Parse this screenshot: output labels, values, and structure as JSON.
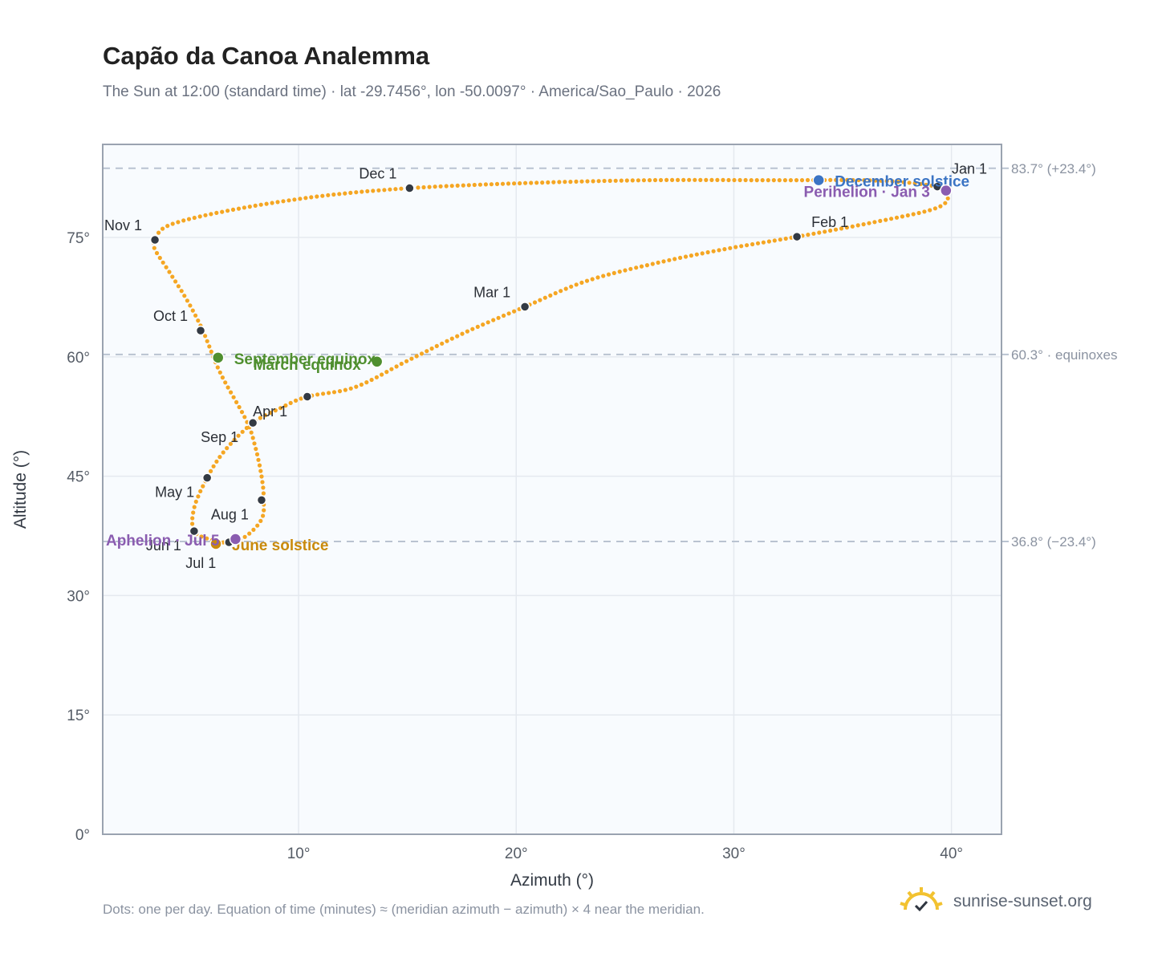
{
  "title": "Capão da Canoa Analemma",
  "subtitle": "The Sun at 12:00 (standard time) · lat -29.7456°, lon -50.0097° · America/Sao_Paulo · 2026",
  "footnote": "Dots: one per day. Equation of time (minutes) ≈ (meridian azimuth − azimuth) × 4 near the meridian.",
  "brand": {
    "text": "sunrise-sunset.org",
    "icon": "sun-logo-icon"
  },
  "colors": {
    "curve": "#f5a623",
    "month": "#333a44",
    "equinox": "#4f8f2f",
    "december_solstice": "#3b74c4",
    "june_solstice": "#c98a0c",
    "perihelion": "#8a5cb0",
    "grid": "#e5e9ef",
    "plot_bg": "#f8fbfe",
    "ref_line": "#b9c3d1"
  },
  "chart_data": {
    "type": "scatter",
    "title": "Capão da Canoa Analemma",
    "xlabel": "Azimuth (°)",
    "ylabel": "Altitude (°)",
    "xlim": [
      1,
      42.3
    ],
    "ylim": [
      0,
      86.7
    ],
    "xticks": [
      10,
      20,
      30,
      40
    ],
    "yticks": [
      0,
      15,
      30,
      45,
      60,
      75
    ],
    "xtick_labels": [
      "10°",
      "20°",
      "30°",
      "40°"
    ],
    "ytick_labels": [
      "0°",
      "15°",
      "30°",
      "45°",
      "60°",
      "75°"
    ],
    "grid": true,
    "series": [
      {
        "values": [
          [
            39.35,
            81.4
          ],
          [
            39.85,
            80.1
          ],
          [
            39.2,
            78.6
          ],
          [
            36.4,
            76.9
          ],
          [
            32.9,
            75.1
          ],
          [
            29.5,
            73.5
          ],
          [
            26.3,
            71.7
          ],
          [
            23.2,
            69.5
          ],
          [
            20.4,
            66.3
          ],
          [
            17.6,
            63.0
          ],
          [
            15.0,
            59.5
          ],
          [
            12.6,
            56.2
          ],
          [
            10.4,
            55.0
          ],
          [
            9.2,
            53.6
          ],
          [
            7.9,
            51.7
          ],
          [
            6.6,
            48.2
          ],
          [
            5.8,
            44.8
          ],
          [
            5.2,
            41.0
          ],
          [
            5.2,
            38.1
          ],
          [
            6.0,
            37.0
          ],
          [
            6.8,
            36.7
          ],
          [
            7.6,
            37.5
          ],
          [
            8.3,
            39.6
          ],
          [
            8.4,
            42.0
          ],
          [
            8.3,
            45.0
          ],
          [
            8.0,
            48.8
          ],
          [
            7.6,
            52.0
          ],
          [
            6.4,
            58.0
          ],
          [
            5.6,
            63.3
          ],
          [
            4.9,
            67.0
          ],
          [
            4.1,
            70.5
          ],
          [
            3.4,
            73.5
          ],
          [
            3.4,
            74.7
          ],
          [
            4.1,
            76.6
          ],
          [
            7.0,
            78.5
          ],
          [
            11.0,
            80.2
          ],
          [
            15.1,
            81.2
          ],
          [
            20.0,
            81.8
          ],
          [
            26.0,
            82.2
          ],
          [
            32.0,
            82.2
          ],
          [
            36.0,
            82.2
          ],
          [
            38.0,
            81.9
          ],
          [
            39.35,
            81.4
          ]
        ]
      }
    ],
    "month_markers": [
      {
        "label": "Jan 1",
        "x": 39.35,
        "y": 81.4
      },
      {
        "label": "Feb 1",
        "x": 32.9,
        "y": 75.1
      },
      {
        "label": "Mar 1",
        "x": 20.4,
        "y": 66.3
      },
      {
        "label": "Apr 1",
        "x": 10.4,
        "y": 55.0
      },
      {
        "label": "May 1",
        "x": 5.8,
        "y": 44.8
      },
      {
        "label": "Jun 1",
        "x": 5.2,
        "y": 38.1
      },
      {
        "label": "Jul 1",
        "x": 6.8,
        "y": 36.7
      },
      {
        "label": "Aug 1",
        "x": 8.3,
        "y": 42.0
      },
      {
        "label": "Sep 1",
        "x": 7.9,
        "y": 51.7
      },
      {
        "label": "Oct 1",
        "x": 5.5,
        "y": 63.3
      },
      {
        "label": "Nov 1",
        "x": 3.4,
        "y": 74.7
      },
      {
        "label": "Dec 1",
        "x": 15.1,
        "y": 81.2
      }
    ],
    "events": [
      {
        "label": "December solstice",
        "x": 33.9,
        "y": 82.2,
        "color_key": "december_solstice"
      },
      {
        "label": "Perihelion · Jan 3",
        "x": 39.75,
        "y": 80.9,
        "color_key": "perihelion"
      },
      {
        "label": "March equinox",
        "x": 13.6,
        "y": 59.4,
        "color_key": "equinox"
      },
      {
        "label": "September equinox",
        "x": 6.3,
        "y": 59.9,
        "color_key": "equinox"
      },
      {
        "label": "June solstice",
        "x": 6.2,
        "y": 36.5,
        "color_key": "june_solstice"
      },
      {
        "label": "Aphelion · Jul 5",
        "x": 7.1,
        "y": 37.1,
        "color_key": "perihelion"
      }
    ],
    "reference_lines": [
      {
        "y": 83.7,
        "label": "83.7° (+23.4°)"
      },
      {
        "y": 60.3,
        "label": "60.3° · equinoxes"
      },
      {
        "y": 36.8,
        "label": "36.8° (−23.4°)"
      }
    ]
  }
}
